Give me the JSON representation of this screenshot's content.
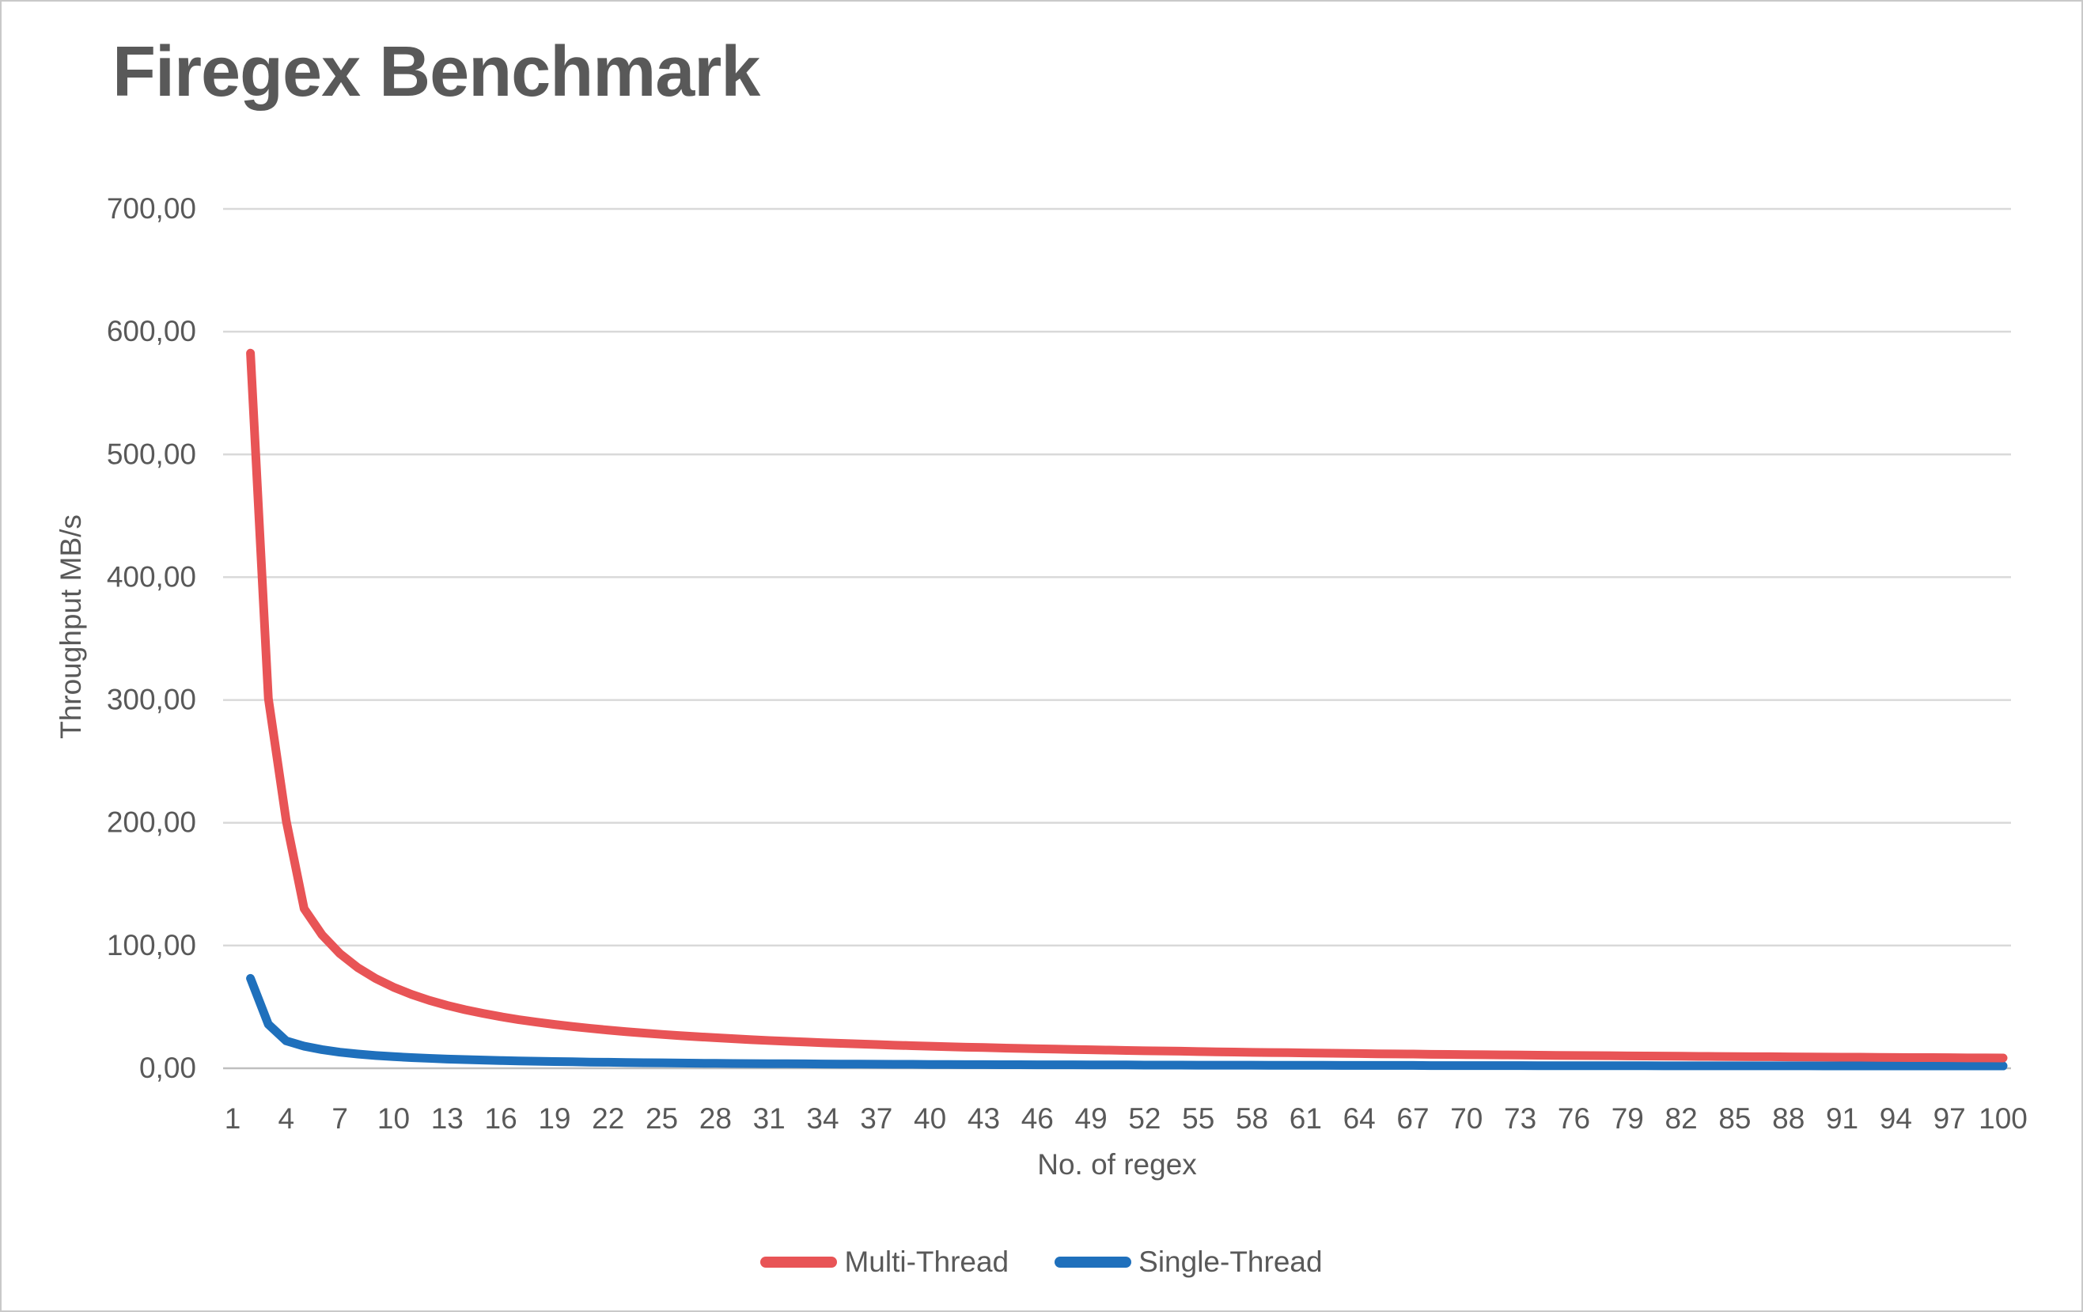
{
  "chart_data": {
    "type": "line",
    "title": "Firegex Benchmark",
    "xlabel": "No. of regex",
    "ylabel": "Throughput MB/s",
    "grid": true,
    "legend_position": "bottom",
    "ylim": [
      0,
      700
    ],
    "x_range": [
      1,
      100
    ],
    "x_ticks": [
      1,
      4,
      7,
      10,
      13,
      16,
      19,
      22,
      25,
      28,
      31,
      34,
      37,
      40,
      43,
      46,
      49,
      52,
      55,
      58,
      61,
      64,
      67,
      70,
      73,
      76,
      79,
      82,
      85,
      88,
      91,
      94,
      97,
      100
    ],
    "y_ticks": [
      0,
      100,
      200,
      300,
      400,
      500,
      600,
      700
    ],
    "y_tick_labels": [
      "0,00",
      "100,00",
      "200,00",
      "300,00",
      "400,00",
      "500,00",
      "600,00",
      "700,00"
    ],
    "colors": {
      "text": "#595959",
      "gridline": "#d9d9d9",
      "axis_line": "#bfbfbf",
      "multi_thread": "#e85456",
      "single_thread": "#1f70bc"
    },
    "x": [
      2,
      3,
      4,
      5,
      6,
      7,
      8,
      9,
      10,
      11,
      12,
      13,
      14,
      15,
      16,
      17,
      18,
      19,
      20,
      21,
      22,
      23,
      24,
      25,
      26,
      27,
      28,
      29,
      30,
      31,
      32,
      33,
      34,
      35,
      36,
      37,
      38,
      39,
      40,
      41,
      42,
      43,
      44,
      45,
      46,
      47,
      48,
      49,
      50,
      51,
      52,
      53,
      54,
      55,
      56,
      57,
      58,
      59,
      60,
      61,
      62,
      63,
      64,
      65,
      66,
      67,
      68,
      69,
      70,
      71,
      72,
      73,
      74,
      75,
      76,
      77,
      78,
      79,
      80,
      81,
      82,
      83,
      84,
      85,
      86,
      87,
      88,
      89,
      90,
      91,
      92,
      93,
      94,
      95,
      96,
      97,
      98,
      99,
      100
    ],
    "series": [
      {
        "name": "Multi-Thread",
        "color": "#e85456",
        "values": [
          582.5,
          301.3,
          201.5,
          130.0,
          108.7,
          93.4,
          82.0,
          73.1,
          66.0,
          60.2,
          55.3,
          51.2,
          47.7,
          44.7,
          42.0,
          39.6,
          37.6,
          35.7,
          34.0,
          32.5,
          31.1,
          29.8,
          28.7,
          27.6,
          26.6,
          25.7,
          24.9,
          24.1,
          23.3,
          22.6,
          22.0,
          21.4,
          20.8,
          20.3,
          19.8,
          19.3,
          18.8,
          18.4,
          18.0,
          17.6,
          17.2,
          16.9,
          16.5,
          16.2,
          15.9,
          15.6,
          15.3,
          15.1,
          14.8,
          14.5,
          14.3,
          14.1,
          13.9,
          13.6,
          13.4,
          13.2,
          13.0,
          12.8,
          12.7,
          12.5,
          12.3,
          12.2,
          12.0,
          11.8,
          11.7,
          11.6,
          11.4,
          11.3,
          11.1,
          11.0,
          10.9,
          10.8,
          10.6,
          10.5,
          10.4,
          10.3,
          10.2,
          10.1,
          10.0,
          9.9,
          9.8,
          9.7,
          9.6,
          9.5,
          9.4,
          9.4,
          9.3,
          9.2,
          9.1,
          9.0,
          9.0,
          8.9,
          8.8,
          8.7,
          8.7,
          8.6,
          8.5,
          8.5,
          8.4
        ]
      },
      {
        "name": "Single-Thread",
        "color": "#1f70bc",
        "values": [
          73.2,
          35.8,
          22.3,
          18.0,
          15.2,
          13.1,
          11.6,
          10.4,
          9.5,
          8.7,
          8.1,
          7.5,
          7.1,
          6.7,
          6.3,
          6.0,
          5.7,
          5.5,
          5.3,
          5.0,
          4.9,
          4.7,
          4.5,
          4.4,
          4.3,
          4.1,
          4.0,
          3.9,
          3.8,
          3.7,
          3.7,
          3.6,
          3.5,
          3.4,
          3.4,
          3.3,
          3.2,
          3.2,
          3.1,
          3.1,
          3.0,
          3.0,
          2.9,
          2.9,
          2.8,
          2.8,
          2.8,
          2.7,
          2.7,
          2.7,
          2.6,
          2.6,
          2.6,
          2.5,
          2.5,
          2.5,
          2.5,
          2.4,
          2.4,
          2.4,
          2.4,
          2.3,
          2.3,
          2.3,
          2.3,
          2.3,
          2.2,
          2.2,
          2.2,
          2.2,
          2.2,
          2.2,
          2.1,
          2.1,
          2.1,
          2.1,
          2.1,
          2.1,
          2.1,
          2.0,
          2.0,
          2.0,
          2.0,
          2.0,
          2.0,
          2.0,
          2.0,
          2.0,
          1.9,
          1.9,
          1.9,
          1.9,
          1.9,
          1.9,
          1.9,
          1.9,
          1.9,
          1.9,
          1.9
        ]
      }
    ]
  }
}
